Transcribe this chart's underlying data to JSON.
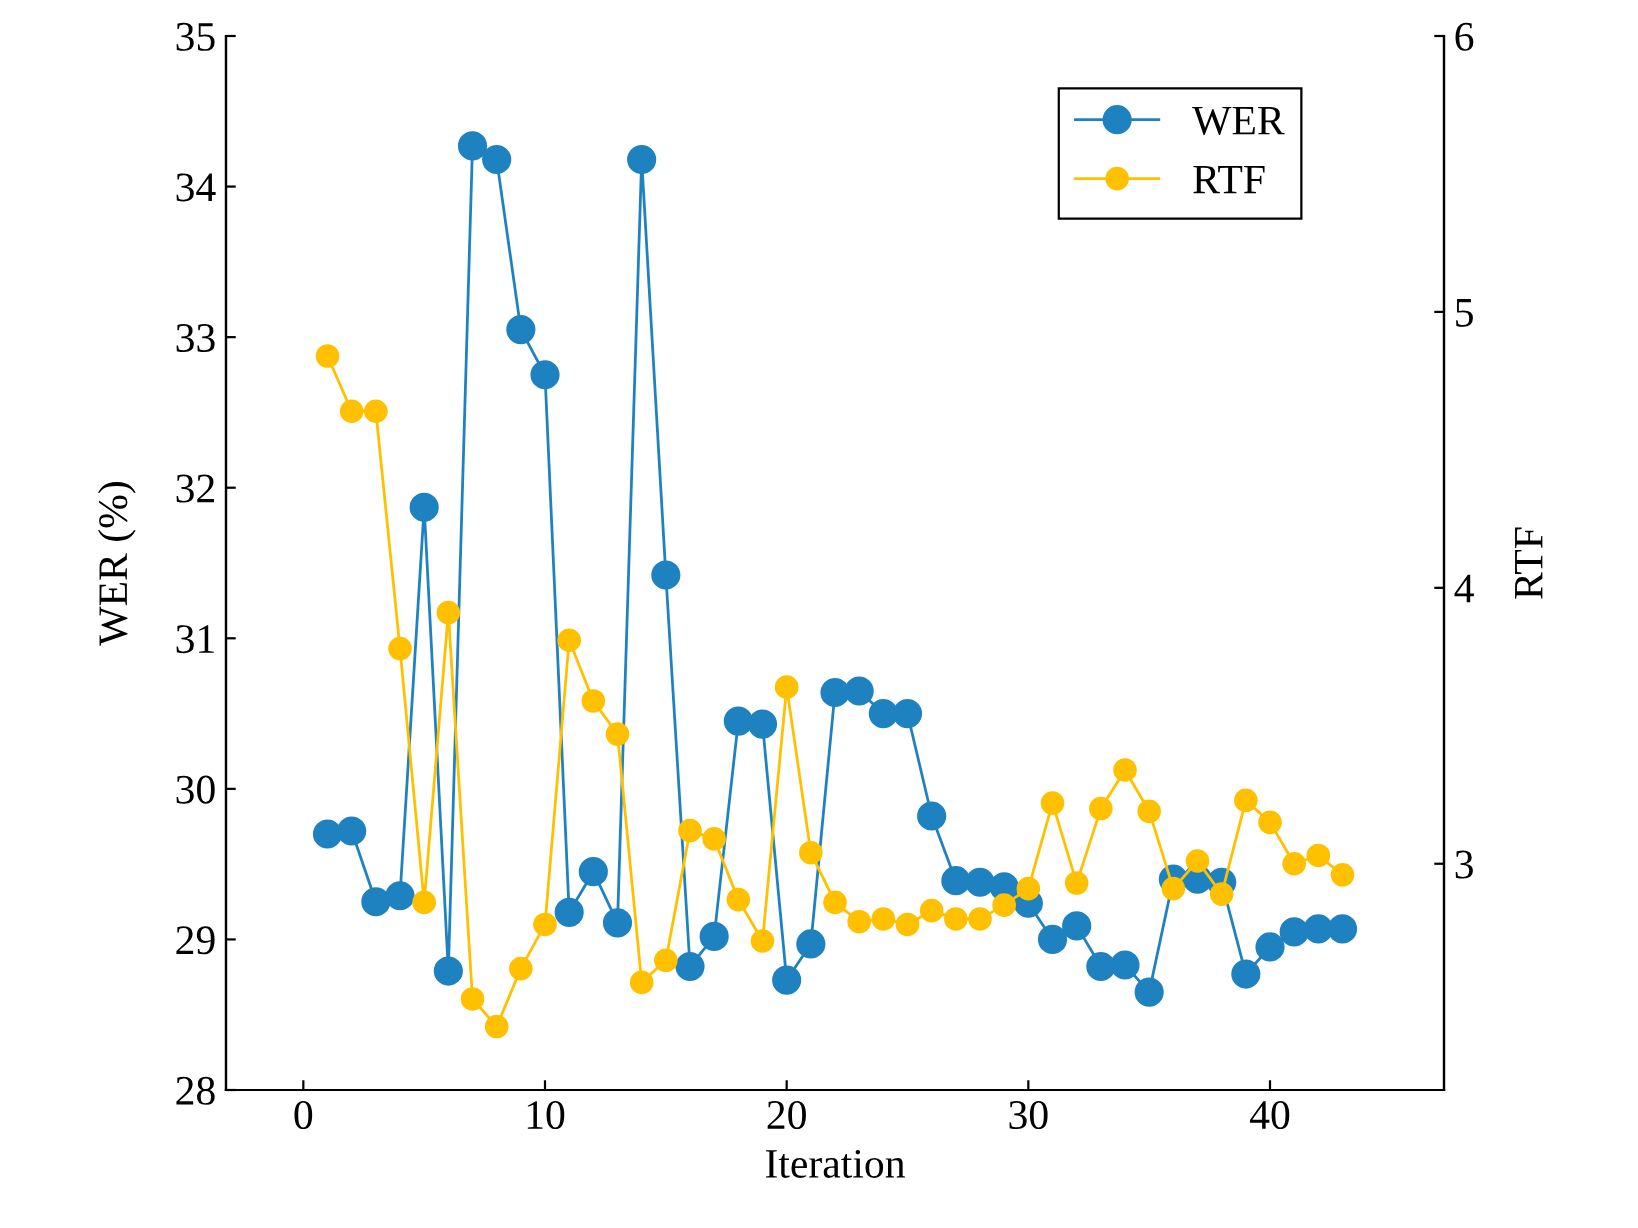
{
  "chart_data": {
    "type": "line",
    "xlabel": "Iteration",
    "ylabel": "WER (%)",
    "y2label": "RTF",
    "x": [
      1,
      2,
      3,
      4,
      5,
      6,
      7,
      8,
      9,
      10,
      11,
      12,
      13,
      14,
      15,
      16,
      17,
      18,
      19,
      20,
      21,
      22,
      23,
      24,
      25,
      26,
      27,
      28,
      29,
      30,
      31,
      32,
      33,
      34,
      35,
      36,
      37,
      38,
      39,
      40,
      41,
      42,
      43
    ],
    "series": [
      {
        "name": "WER",
        "color": "#1f82c0",
        "values": [
          29.7,
          29.72,
          29.25,
          29.29,
          31.87,
          28.79,
          34.27,
          34.18,
          33.05,
          32.75,
          29.18,
          29.45,
          29.11,
          34.18,
          31.42,
          28.82,
          29.02,
          30.45,
          30.43,
          28.73,
          28.97,
          30.64,
          30.65,
          30.5,
          30.5,
          29.82,
          29.39,
          29.38,
          29.35,
          29.24,
          29.0,
          29.09,
          28.82,
          28.83,
          28.65,
          29.4,
          29.4,
          29.38,
          28.77,
          28.95,
          29.05,
          29.07,
          29.07
        ]
      },
      {
        "name": "RTF",
        "color": "#ffc000",
        "axis": "y2",
        "values": [
          4.84,
          4.64,
          4.64,
          3.78,
          2.86,
          3.91,
          2.51,
          2.41,
          2.62,
          2.78,
          3.81,
          3.59,
          3.47,
          2.57,
          2.65,
          3.12,
          3.09,
          2.87,
          2.72,
          3.64,
          3.04,
          2.86,
          2.79,
          2.8,
          2.78,
          2.83,
          2.8,
          2.8,
          2.85,
          2.91,
          3.22,
          2.93,
          3.2,
          3.34,
          3.19,
          2.91,
          3.01,
          2.89,
          3.23,
          3.15,
          3.0,
          3.03,
          2.96
        ]
      }
    ],
    "xlim": [
      -3.2,
      47.2
    ],
    "xticks": [
      0,
      10,
      20,
      30,
      40
    ],
    "ylim": [
      28,
      35
    ],
    "yticks": [
      28,
      29,
      30,
      31,
      32,
      33,
      34,
      35
    ],
    "y2lim": [
      2.18,
      6
    ],
    "y2ticks": [
      3,
      4,
      5,
      6
    ],
    "marker": "circle",
    "line_style": "solid",
    "grid": false,
    "legend": "top right"
  }
}
